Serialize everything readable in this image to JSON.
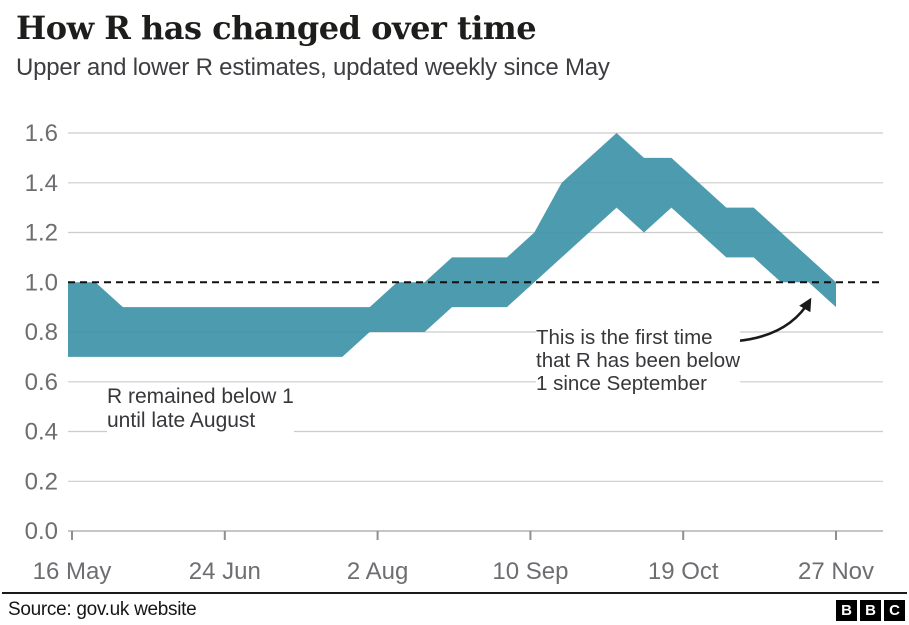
{
  "header": {
    "title": "How R has changed over time",
    "subtitle": "Upper and lower R estimates, updated weekly since May"
  },
  "chart_data": {
    "type": "area",
    "subtype": "range-band",
    "title": "How R has changed over time",
    "subtitle": "Upper and lower R estimates, updated weekly since May",
    "x_tick_labels": [
      "16 May",
      "24 Jun",
      "2 Aug",
      "10 Sep",
      "19 Oct",
      "27 Nov"
    ],
    "y_tick_labels": [
      "0.0",
      "0.2",
      "0.4",
      "0.6",
      "0.8",
      "1.0",
      "1.2",
      "1.4",
      "1.6"
    ],
    "ylim": [
      0,
      1.6
    ],
    "grid": true,
    "legend": "none",
    "reference_line": {
      "value": 1.0,
      "style": "dashed",
      "color": "#111111"
    },
    "series": [
      {
        "name": "R lower estimate",
        "values": [
          0.7,
          0.7,
          0.7,
          0.7,
          0.7,
          0.7,
          0.7,
          0.7,
          0.7,
          0.7,
          0.7,
          0.8,
          0.8,
          0.8,
          0.9,
          0.9,
          0.9,
          1.0,
          1.1,
          1.2,
          1.3,
          1.2,
          1.3,
          1.2,
          1.1,
          1.1,
          1.0,
          1.0,
          0.9
        ]
      },
      {
        "name": "R upper estimate",
        "values": [
          1.0,
          1.0,
          0.9,
          0.9,
          0.9,
          0.9,
          0.9,
          0.9,
          0.9,
          0.9,
          0.9,
          0.9,
          1.0,
          1.0,
          1.1,
          1.1,
          1.1,
          1.2,
          1.4,
          1.5,
          1.6,
          1.5,
          1.5,
          1.4,
          1.3,
          1.3,
          1.2,
          1.1,
          1.0
        ]
      }
    ],
    "band_color": "#3E92A8",
    "annotations": [
      {
        "text": "R remained below 1\nuntil late August"
      },
      {
        "text": "This is the first time\nthat R has been below\n1 since September"
      }
    ]
  },
  "footer": {
    "source": "Source: gov.uk website",
    "logo_letters": [
      "B",
      "B",
      "C"
    ]
  }
}
